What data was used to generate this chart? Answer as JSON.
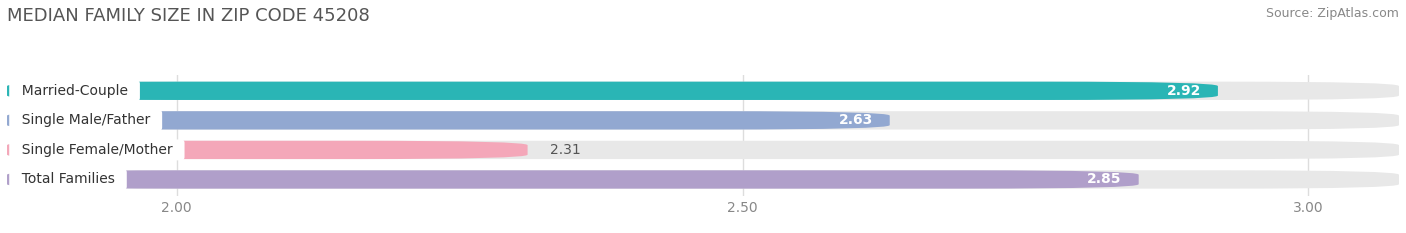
{
  "title": "MEDIAN FAMILY SIZE IN ZIP CODE 45208",
  "source": "Source: ZipAtlas.com",
  "categories": [
    "Married-Couple",
    "Single Male/Father",
    "Single Female/Mother",
    "Total Families"
  ],
  "values": [
    2.92,
    2.63,
    2.31,
    2.85
  ],
  "bar_colors": [
    "#2ab5b5",
    "#92a8d1",
    "#f4a7b9",
    "#b09fca"
  ],
  "value_text_colors": [
    "white",
    "white",
    "#666666",
    "white"
  ],
  "xlim_left": 1.85,
  "xlim_right": 3.08,
  "x_min": 2.0,
  "xticks": [
    2.0,
    2.5,
    3.0
  ],
  "xtick_labels": [
    "2.00",
    "2.50",
    "3.00"
  ],
  "bar_height": 0.62,
  "bar_gap": 0.38,
  "title_fontsize": 13,
  "source_fontsize": 9,
  "label_fontsize": 10,
  "value_fontsize": 10,
  "tick_fontsize": 10,
  "background_color": "#ffffff",
  "bar_bg_color": "#e8e8e8",
  "grid_color": "#dddddd",
  "label_bg_color": "#ffffff"
}
